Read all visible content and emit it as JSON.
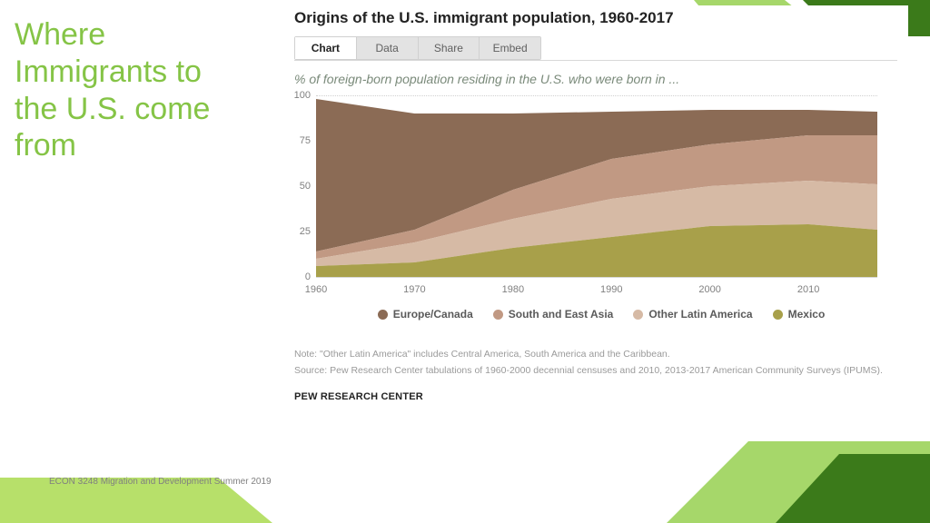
{
  "slide": {
    "title": "Where Immigrants to the U.S. come from",
    "title_color": "#85c446",
    "course_footer": "ECON 3248 Migration and Development Summer 2019",
    "deco_colors": {
      "light": "#a6d76a",
      "dark": "#3b7a1a",
      "lime": "#b7e06a"
    }
  },
  "chart": {
    "title": "Origins of the U.S. immigrant population, 1960-2017",
    "tabs": [
      "Chart",
      "Data",
      "Share",
      "Embed"
    ],
    "active_tab": 0,
    "subtitle": "% of foreign-born population residing in the U.S. who were born in ...",
    "type": "stacked-area",
    "ylim": [
      0,
      100
    ],
    "yticks": [
      0,
      25,
      50,
      75,
      100
    ],
    "xlim": [
      1960,
      2017
    ],
    "xticks": [
      1960,
      1970,
      1980,
      1990,
      2000,
      2010
    ],
    "background": "#ffffff",
    "grid_color": "#d0d0d0",
    "tick_fontsize": 11,
    "tick_color": "#808080",
    "series": [
      {
        "name": "Mexico",
        "color": "#a8a04a",
        "values": [
          6,
          8,
          16,
          22,
          28,
          29,
          26
        ]
      },
      {
        "name": "Other Latin America",
        "color": "#d6baa5",
        "values": [
          4,
          11,
          16,
          21,
          22,
          24,
          25
        ]
      },
      {
        "name": "South and East Asia",
        "color": "#c19983",
        "values": [
          4,
          7,
          16,
          22,
          23,
          25,
          27
        ]
      },
      {
        "name": "Europe/Canada",
        "color": "#8b6b55",
        "values": [
          84,
          64,
          42,
          26,
          19,
          14,
          13
        ]
      }
    ],
    "years": [
      1960,
      1970,
      1980,
      1990,
      2000,
      2010,
      2017
    ],
    "legend_fontsize": 12,
    "note": "Note: \"Other Latin America\" includes Central America, South America and the Caribbean.",
    "source": "Source: Pew Research Center tabulations of 1960-2000 decennial censuses and 2010, 2013-2017 American Community Surveys (IPUMS).",
    "source_label": "PEW RESEARCH CENTER"
  }
}
